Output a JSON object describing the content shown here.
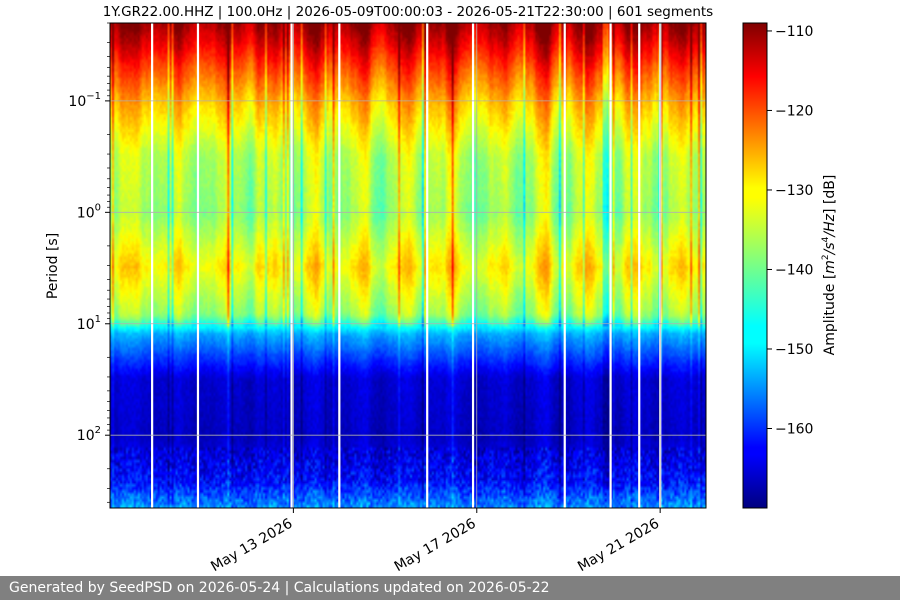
{
  "chart_data": {
    "type": "heatmap",
    "title": "1Y.GR22.00.HHZ | 100.0Hz | 2026-05-09T00:00:03 - 2026-05-21T22:30:00 | 601 segments",
    "xlabel": "",
    "ylabel": "Period [s]",
    "x_tick_labels": [
      "May 13 2026",
      "May 17 2026",
      "May 21 2026"
    ],
    "y_scale": "log",
    "y_inverted": true,
    "y_tick_labels": [
      {
        "base": "10",
        "exp": "−1",
        "value": 0.1
      },
      {
        "base": "10",
        "exp": "0",
        "value": 1
      },
      {
        "base": "10",
        "exp": "1",
        "value": 10
      },
      {
        "base": "10",
        "exp": "2",
        "value": 100
      }
    ],
    "y_range": [
      0.02,
      450
    ],
    "x_range": [
      "2026-05-09",
      "2026-05-22"
    ],
    "colorbar": {
      "label_prefix": "Amplitude [",
      "label_units": "m",
      "label_sup1": "2",
      "label_mid": "/s",
      "label_sup2": "4",
      "label_end": "/Hz",
      "label_suffix": "] [dB]",
      "min": -170,
      "max": -109,
      "ticks": [
        "−110",
        "−120",
        "−130",
        "−140",
        "−150",
        "−160"
      ],
      "tick_values": [
        -110,
        -120,
        -130,
        -140,
        -150,
        -160
      ],
      "colormap": "jet"
    },
    "amplitude_profile_db": [
      {
        "period": 0.02,
        "db": -111
      },
      {
        "period": 0.03,
        "db": -115
      },
      {
        "period": 0.05,
        "db": -121
      },
      {
        "period": 0.1,
        "db": -128
      },
      {
        "period": 0.3,
        "db": -136
      },
      {
        "period": 1,
        "db": -138
      },
      {
        "period": 3,
        "db": -131
      },
      {
        "period": 8,
        "db": -138
      },
      {
        "period": 12,
        "db": -152
      },
      {
        "period": 30,
        "db": -165
      },
      {
        "period": 100,
        "db": -166
      },
      {
        "period": 250,
        "db": -162
      },
      {
        "period": 450,
        "db": -153
      }
    ],
    "gap_dates": [
      "2026-05-09T22:00",
      "2026-05-10T22:00",
      "2026-05-12T23:00",
      "2026-05-14T00:00",
      "2026-05-15T22:00",
      "2026-05-16T22:00",
      "2026-05-18T22:00",
      "2026-05-19T22:00",
      "2026-05-20T13:00",
      "2026-05-21T00:00"
    ],
    "grid": true
  },
  "footer": {
    "text": "Generated by SeedPSD on 2026-05-24 | Calculations updated on 2026-05-22"
  }
}
